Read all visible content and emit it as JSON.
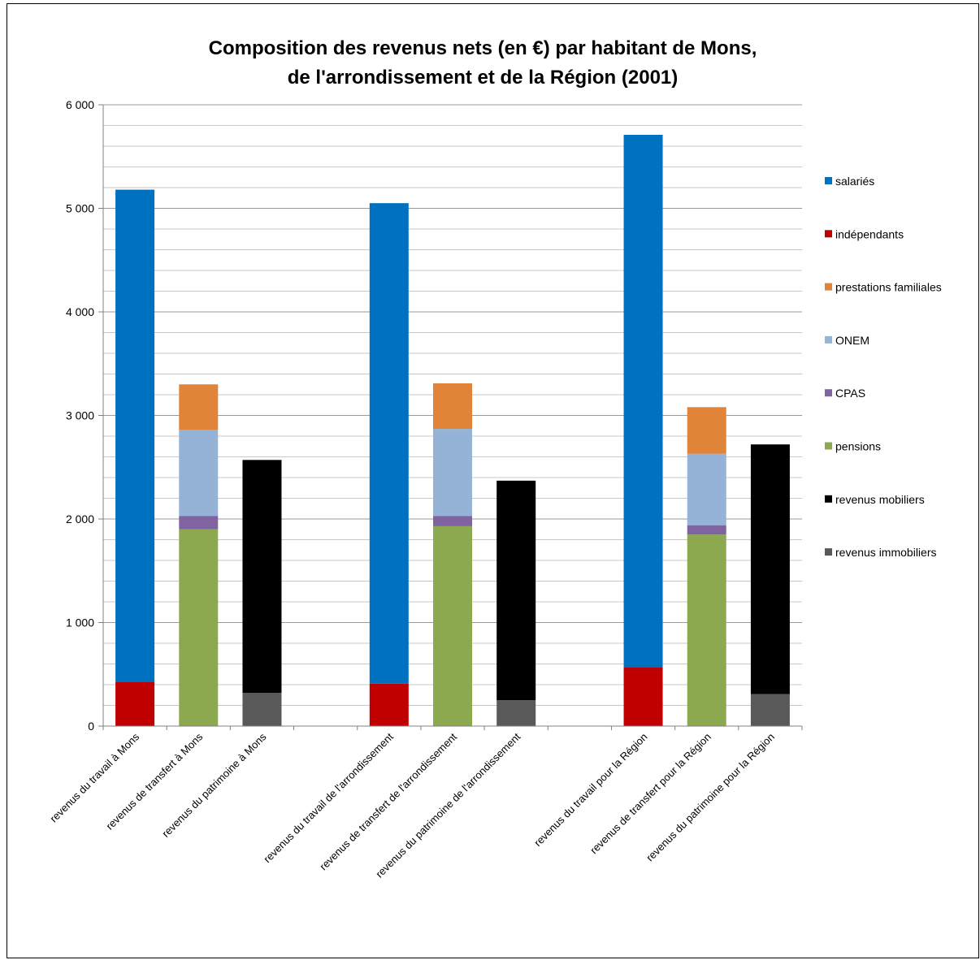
{
  "chart_data": {
    "type": "bar",
    "stacked": true,
    "title_lines": [
      "Composition  des revenus nets (en €) par habitant de Mons,",
      "de l'arrondissement  et de la Région (2001)"
    ],
    "xlabel": "",
    "ylabel": "",
    "ylim": [
      0,
      6000
    ],
    "y_ticks": [
      0,
      1000,
      2000,
      3000,
      4000,
      5000,
      6000
    ],
    "y_tick_labels": [
      "0",
      "1 000",
      "2 000",
      "3 000",
      "4 000",
      "5 000",
      "6 000"
    ],
    "grid": true,
    "minor_grid_step": 200,
    "legend_position": "right",
    "categories": [
      "revenus du travail à Mons",
      "revenus de transfert à Mons",
      "revenus du patrimoine à Mons",
      "",
      "revenus du travail  de l'arrondissement",
      "revenus de transfert de l'arrondissement",
      "revenus du patrimoine  de l'arrondissement",
      "",
      "revenus du travail  pour la Région",
      "revenus de transfert pour la Région",
      "revenus du patrimoine  pour la Région"
    ],
    "series": [
      {
        "name": "salariés",
        "color": "#0070C0",
        "values": [
          4750,
          0,
          0,
          0,
          4640,
          0,
          0,
          0,
          5140,
          0,
          0
        ]
      },
      {
        "name": "indépendants",
        "color": "#C00000",
        "values": [
          430,
          0,
          0,
          0,
          410,
          0,
          0,
          0,
          570,
          0,
          0
        ]
      },
      {
        "name": "prestations familiales",
        "color": "#E0843A",
        "values": [
          0,
          440,
          0,
          0,
          0,
          440,
          0,
          0,
          0,
          450,
          0
        ]
      },
      {
        "name": "ONEM",
        "color": "#95B3D7",
        "values": [
          0,
          830,
          0,
          0,
          0,
          840,
          0,
          0,
          0,
          690,
          0
        ]
      },
      {
        "name": "CPAS",
        "color": "#8064A2",
        "values": [
          0,
          130,
          0,
          0,
          0,
          100,
          0,
          0,
          0,
          90,
          0
        ]
      },
      {
        "name": "pensions",
        "color": "#8DA94F",
        "values": [
          0,
          1900,
          0,
          0,
          0,
          1930,
          0,
          0,
          0,
          1850,
          0
        ]
      },
      {
        "name": "revenus mobiliers",
        "color": "#000000",
        "values": [
          0,
          0,
          2250,
          0,
          0,
          0,
          2120,
          0,
          0,
          0,
          2410
        ]
      },
      {
        "name": "revenus immobiliers",
        "color": "#595959",
        "values": [
          0,
          0,
          320,
          0,
          0,
          0,
          250,
          0,
          0,
          0,
          310
        ]
      }
    ],
    "legend_order": [
      "salariés",
      "indépendants",
      "prestations familiales",
      "ONEM",
      "CPAS",
      "pensions",
      "revenus mobiliers",
      "revenus immobiliers"
    ],
    "stack_order": [
      "revenus immobiliers",
      "revenus mobiliers",
      "pensions",
      "CPAS",
      "ONEM",
      "prestations familiales",
      "indépendants",
      "salariés"
    ]
  }
}
